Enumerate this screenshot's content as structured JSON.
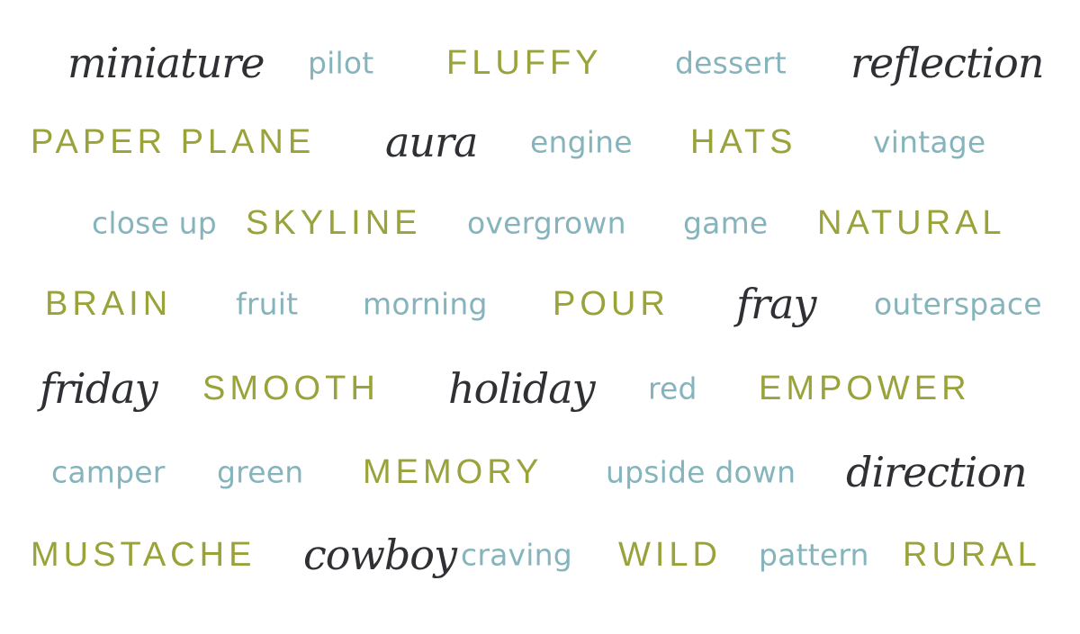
{
  "colors": {
    "background": "#ffffff",
    "green": "#9aa33a",
    "blue": "#86b4bc",
    "charcoal": "#2e3033"
  },
  "rows": [
    [
      {
        "text": "miniature",
        "style": "script"
      },
      {
        "text": "pilot",
        "style": "sans"
      },
      {
        "text": "FLUFFY",
        "style": "caps"
      },
      {
        "text": "dessert",
        "style": "sans"
      },
      {
        "text": "reflection",
        "style": "script"
      }
    ],
    [
      {
        "text": "PAPER PLANE",
        "style": "caps"
      },
      {
        "text": "aura",
        "style": "script"
      },
      {
        "text": "engine",
        "style": "sans"
      },
      {
        "text": "HATS",
        "style": "caps"
      },
      {
        "text": "vintage",
        "style": "sans"
      }
    ],
    [
      {
        "text": "close up",
        "style": "sans"
      },
      {
        "text": "SKYLINE",
        "style": "caps"
      },
      {
        "text": "overgrown",
        "style": "sans"
      },
      {
        "text": "game",
        "style": "sans"
      },
      {
        "text": "NATURAL",
        "style": "caps"
      }
    ],
    [
      {
        "text": "BRAIN",
        "style": "caps"
      },
      {
        "text": "fruit",
        "style": "sans"
      },
      {
        "text": "morning",
        "style": "sans"
      },
      {
        "text": "POUR",
        "style": "caps"
      },
      {
        "text": "fray",
        "style": "script"
      },
      {
        "text": "outerspace",
        "style": "sans"
      }
    ],
    [
      {
        "text": "friday",
        "style": "script"
      },
      {
        "text": "SMOOTH",
        "style": "caps"
      },
      {
        "text": "holiday",
        "style": "script"
      },
      {
        "text": "red",
        "style": "sans"
      },
      {
        "text": "EMPOWER",
        "style": "caps"
      }
    ],
    [
      {
        "text": "camper",
        "style": "sans"
      },
      {
        "text": "green",
        "style": "sans"
      },
      {
        "text": "MEMORY",
        "style": "caps"
      },
      {
        "text": "upside down",
        "style": "sans"
      },
      {
        "text": "direction",
        "style": "script"
      }
    ],
    [
      {
        "text": "MUSTACHE",
        "style": "caps"
      },
      {
        "text": "cowboy",
        "style": "script"
      },
      {
        "text": "craving",
        "style": "sans"
      },
      {
        "text": "WILD",
        "style": "caps"
      },
      {
        "text": "pattern",
        "style": "sans"
      },
      {
        "text": "RURAL",
        "style": "caps"
      }
    ]
  ]
}
